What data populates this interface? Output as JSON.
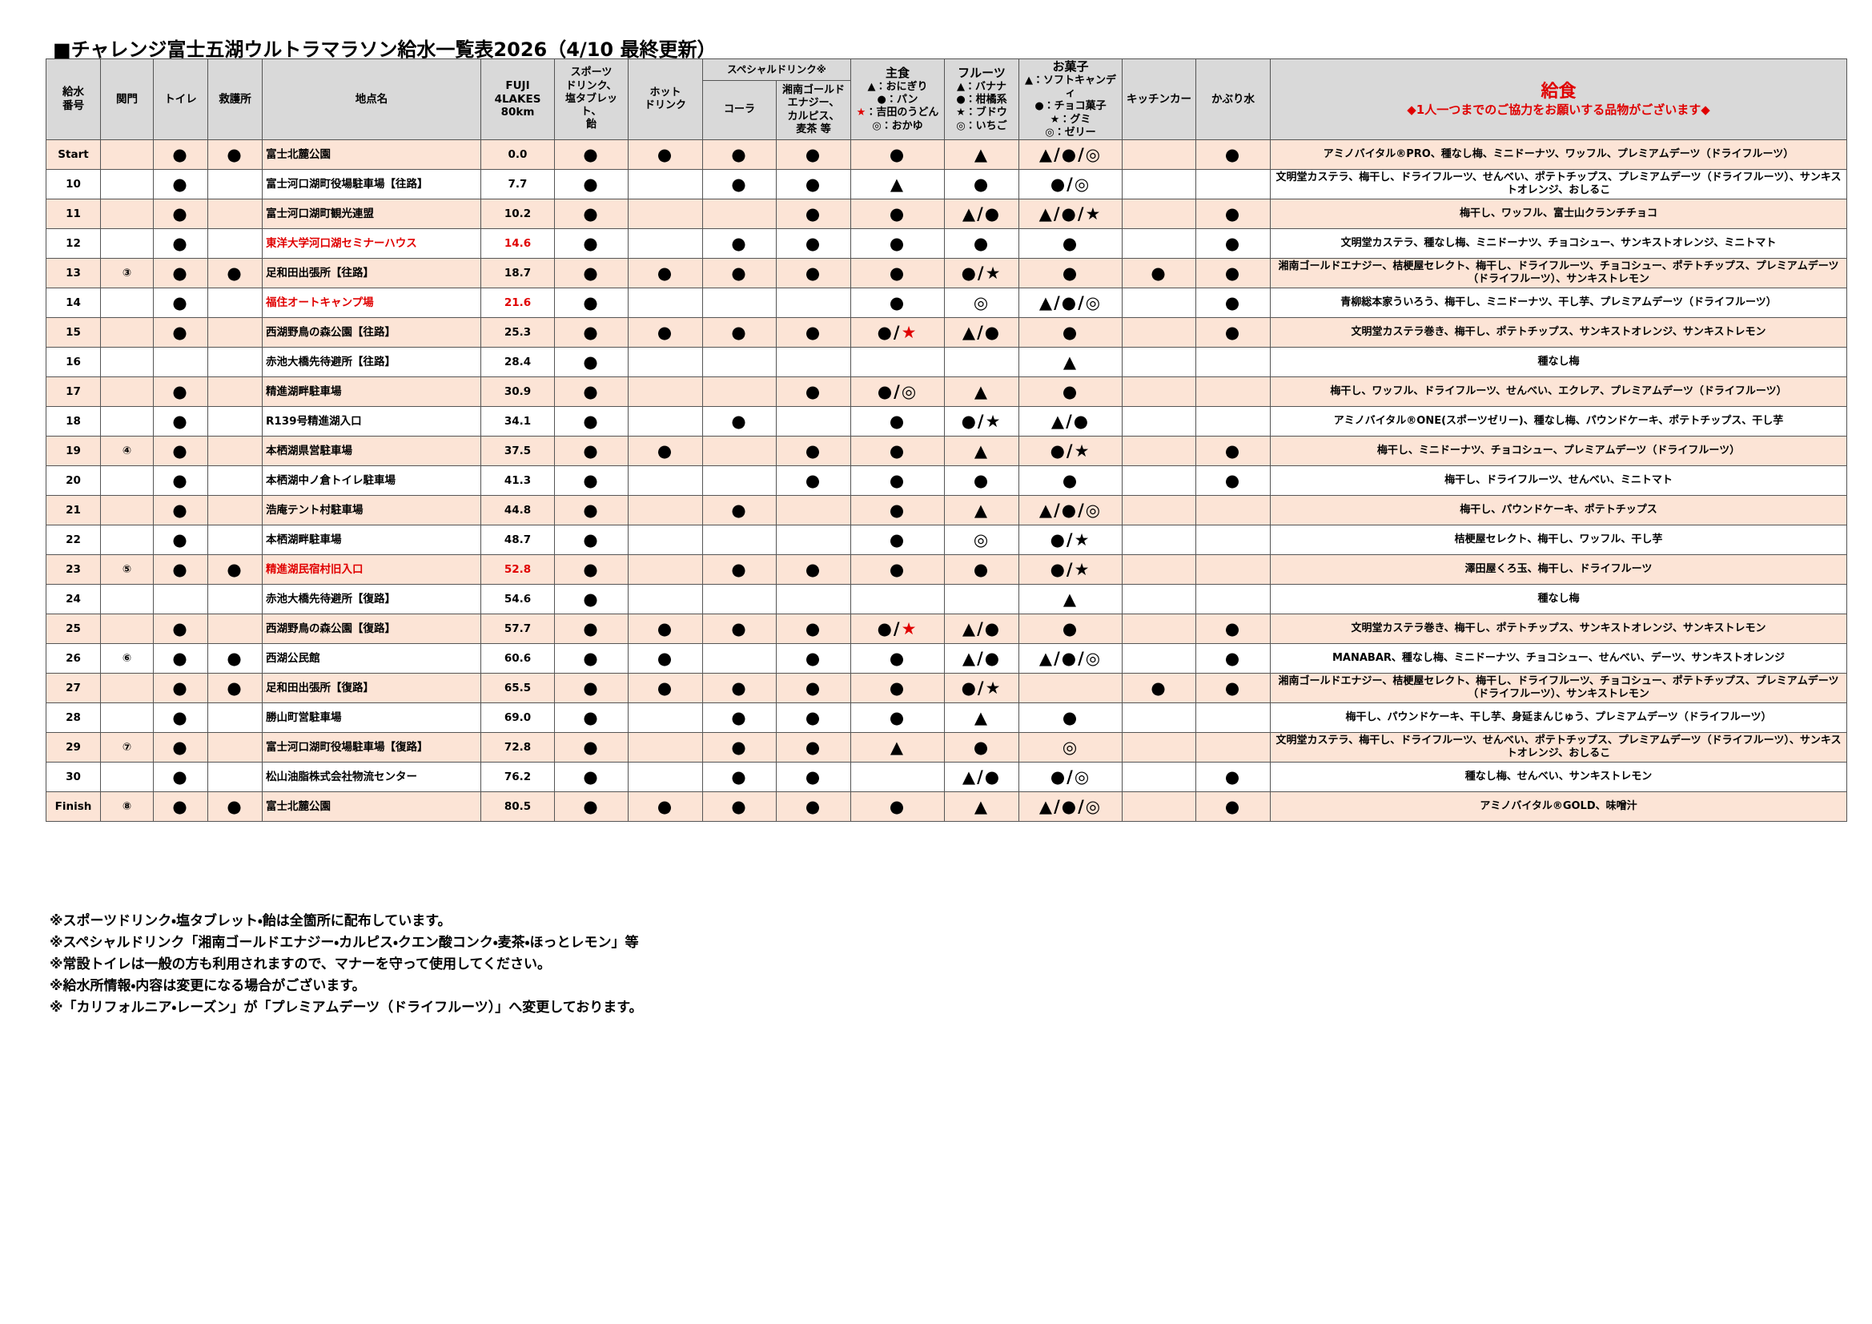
{
  "title": "■チャレンジ富士五湖ウルトラマラソン給水一覧表2026（4/10 最終更新）",
  "table": {
    "header": {
      "columns": [
        "給水\n番号",
        "関門",
        "トイレ",
        "救護所",
        "地点名",
        "FUJI\n4LAKES\n80km",
        "スポーツ\nドリンク、\n塩タブレット、\n飴",
        "ホット\nドリンク",
        "コーラ",
        "湘南ゴールド\nエナジー、\nカルピス、\n麦茶 等",
        "主食",
        "フルーツ",
        "お菓子",
        "キッチンカー",
        "かぶり水",
        "給食"
      ],
      "special_drink": "スペシャルドリンク※",
      "legends": {
        "staple": [
          "▲：おにぎり",
          "●：パン",
          "★：吉田のうどん",
          "◎：おかゆ"
        ],
        "fruit": [
          "▲：バナナ",
          "●：柑橘系",
          "★：ブドウ",
          "◎：いちご"
        ],
        "snack": [
          "▲：ソフトキャンディ",
          "●：チョコ菓子",
          "★：グミ",
          "◎：ゼリー"
        ]
      },
      "food_note": "◆1人一つまでのご協力をお願いする品物がございます◆"
    },
    "rows": [
      [
        "Start",
        null,
        "●",
        "●",
        "富士北麓公園",
        "0.0",
        "●",
        "●",
        "●",
        "●",
        "●",
        "▲",
        "▲/●/◎",
        null,
        "●",
        "アミノバイタル®PRO、種なし梅、ミニドーナツ、ワッフル、プレミアムデーツ（ドライフルーツ）"
      ],
      [
        "10",
        null,
        "●",
        null,
        "富士河口湖町役場駐車場【往路】",
        "7.7",
        "●",
        null,
        "●",
        "●",
        "▲",
        "●",
        "●/◎",
        null,
        null,
        "文明堂カステラ、梅干し、ドライフルーツ、せんべい、ポテトチップス、プレミアムデーツ（ドライフルーツ）、サンキストオレンジ、おしるこ"
      ],
      [
        "11",
        null,
        "●",
        null,
        "富士河口湖町観光連盟",
        "10.2",
        "●",
        null,
        null,
        "●",
        "●",
        "▲/●",
        "▲/●/★",
        null,
        "●",
        "梅干し、ワッフル、富士山クランチチョコ"
      ],
      [
        "12",
        null,
        "●",
        null,
        "東洋大学河口湖セミナーハウス",
        "14.6",
        "●",
        null,
        "●",
        "●",
        "●",
        "●",
        "●",
        null,
        "●",
        "文明堂カステラ、種なし梅、ミニドーナツ、チョコシュー、サンキストオレンジ、ミニトマト"
      ],
      [
        "13",
        "③",
        "●",
        "●",
        "足和田出張所【往路】",
        "18.7",
        "●",
        "●",
        "●",
        "●",
        "●",
        "●/★",
        "●",
        "●",
        "●",
        "湘南ゴールドエナジー、桔梗屋セレクト、梅干し、ドライフルーツ、チョコシュー、ポテトチップス、プレミアムデーツ（ドライフルーツ）、サンキストレモン"
      ],
      [
        "14",
        null,
        "●",
        null,
        "福住オートキャンプ場",
        "21.6",
        "●",
        null,
        null,
        null,
        "●",
        "◎",
        "▲/●/◎",
        null,
        "●",
        "青柳総本家ういろう、梅干し、ミニドーナツ、干し芋、プレミアムデーツ（ドライフルーツ）"
      ],
      [
        "15",
        null,
        "●",
        null,
        "西湖野鳥の森公園【往路】",
        "25.3",
        "●",
        "●",
        "●",
        "●",
        "●/★",
        "▲/●",
        "●",
        null,
        "●",
        "文明堂カステラ巻き、梅干し、ポテトチップス、サンキストオレンジ、サンキストレモン"
      ],
      [
        "16",
        null,
        null,
        null,
        "赤池大橋先待避所【往路】",
        "28.4",
        "●",
        null,
        null,
        null,
        null,
        null,
        "▲",
        null,
        null,
        "種なし梅"
      ],
      [
        "17",
        null,
        "●",
        null,
        "精進湖畔駐車場",
        "30.9",
        "●",
        null,
        null,
        "●",
        "●/◎",
        "▲",
        "●",
        null,
        null,
        "梅干し、ワッフル、ドライフルーツ、せんべい、エクレア、プレミアムデーツ（ドライフルーツ）"
      ],
      [
        "18",
        null,
        "●",
        null,
        "R139号精進湖入口",
        "34.1",
        "●",
        null,
        "●",
        null,
        "●",
        "●/★",
        "▲/●",
        null,
        null,
        "アミノバイタル®ONE(スポーツゼリー)、種なし梅、パウンドケーキ、ポテトチップス、干し芋"
      ],
      [
        "19",
        "④",
        "●",
        null,
        "本栖湖県営駐車場",
        "37.5",
        "●",
        "●",
        null,
        "●",
        "●",
        "▲",
        "●/★",
        null,
        "●",
        "梅干し、ミニドーナツ、チョコシュー、プレミアムデーツ（ドライフルーツ）"
      ],
      [
        "20",
        null,
        "●",
        null,
        "本栖湖中ノ倉トイレ駐車場",
        "41.3",
        "●",
        null,
        null,
        "●",
        "●",
        "●",
        "●",
        null,
        "●",
        "梅干し、ドライフルーツ、せんべい、ミニトマト"
      ],
      [
        "21",
        null,
        "●",
        null,
        "浩庵テント村駐車場",
        "44.8",
        "●",
        null,
        "●",
        null,
        "●",
        "▲",
        "▲/●/◎",
        null,
        null,
        "梅干し、パウンドケーキ、ポテトチップス"
      ],
      [
        "22",
        null,
        "●",
        null,
        "本栖湖畔駐車場",
        "48.7",
        "●",
        null,
        null,
        null,
        "●",
        "◎",
        "●/★",
        null,
        null,
        "桔梗屋セレクト、梅干し、ワッフル、干し芋"
      ],
      [
        "23",
        "⑤",
        "●",
        "●",
        "精進湖民宿村旧入口",
        "52.8",
        "●",
        null,
        "●",
        "●",
        "●",
        "●",
        "●/★",
        null,
        null,
        "澤田屋くろ玉、梅干し、ドライフルーツ"
      ],
      [
        "24",
        null,
        null,
        null,
        "赤池大橋先待避所【復路】",
        "54.6",
        "●",
        null,
        null,
        null,
        null,
        null,
        "▲",
        null,
        null,
        "種なし梅"
      ],
      [
        "25",
        null,
        "●",
        null,
        "西湖野鳥の森公園【復路】",
        "57.7",
        "●",
        "●",
        "●",
        "●",
        "●/★",
        "▲/●",
        "●",
        null,
        "●",
        "文明堂カステラ巻き、梅干し、ポテトチップス、サンキストオレンジ、サンキストレモン"
      ],
      [
        "26",
        "⑥",
        "●",
        "●",
        "西湖公民館",
        "60.6",
        "●",
        "●",
        null,
        "●",
        "●",
        "▲/●",
        "▲/●/◎",
        null,
        "●",
        "MANABAR、種なし梅、ミニドーナツ、チョコシュー、せんべい、デーツ、サンキストオレンジ"
      ],
      [
        "27",
        null,
        "●",
        "●",
        "足和田出張所【復路】",
        "65.5",
        "●",
        "●",
        "●",
        "●",
        "●",
        "●/★",
        null,
        "●",
        "●",
        "湘南ゴールドエナジー、桔梗屋セレクト、梅干し、ドライフルーツ、チョコシュー、ポテトチップス、プレミアムデーツ（ドライフルーツ）、サンキストレモン"
      ],
      [
        "28",
        null,
        "●",
        null,
        "勝山町営駐車場",
        "69.0",
        "●",
        null,
        "●",
        "●",
        "●",
        "▲",
        "●",
        null,
        null,
        "梅干し、パウンドケーキ、干し芋、身延まんじゅう、プレミアムデーツ（ドライフルーツ）"
      ],
      [
        "29",
        "⑦",
        "●",
        null,
        "富士河口湖町役場駐車場【復路】",
        "72.8",
        "●",
        null,
        "●",
        "●",
        "▲",
        "●",
        "◎",
        null,
        null,
        "文明堂カステラ、梅干し、ドライフルーツ、せんべい、ポテトチップス、プレミアムデーツ（ドライフルーツ）、サンキストオレンジ、おしるこ"
      ],
      [
        "30",
        null,
        "●",
        null,
        "松山油脂株式会社物流センター",
        "76.2",
        "●",
        null,
        "●",
        "●",
        null,
        "▲/●",
        "●/◎",
        null,
        "●",
        "種なし梅、せんべい、サンキストレモン"
      ],
      [
        "Finish",
        "⑧",
        "●",
        "●",
        "富士北麓公園",
        "80.5",
        "●",
        "●",
        "●",
        "●",
        "●",
        "▲",
        "▲/●/◎",
        null,
        "●",
        "アミノバイタル®GOLD、味噌汁"
      ]
    ]
  },
  "footnotes": [
    "※スポーツドリンク・塩タブレット・飴は全箇所に配布しています。",
    "※スペシャルドリンク「湘南ゴールドエナジー・カルピス・クエン酸コンク・麦茶・ほっとレモン」等",
    "※常設トイレは一般の方も利用されますので、マナーを守って使用してください。",
    "※給水所情報・内容は変更になる場合がございます。",
    "※「カリフォルニア・レーズン」が「プレミアムデーツ（ドライフルーツ）」へ変更しております。"
  ]
}
